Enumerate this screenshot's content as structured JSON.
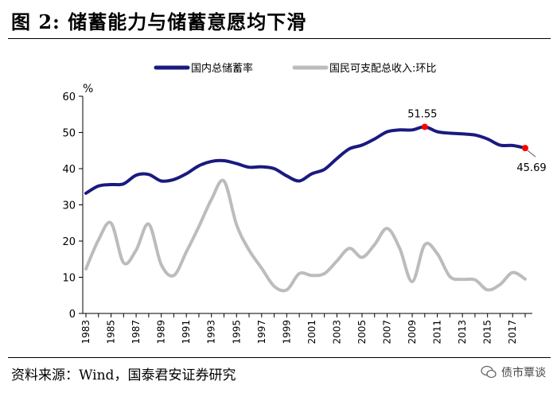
{
  "figure": {
    "label": "图 2:",
    "title": "储蓄能力与储蓄意愿均下滑",
    "source": "资料来源：Wind，国泰君安证券研究",
    "brand": "债市覃谈",
    "brand_icon": "wechat-bubble-icon"
  },
  "chart_data": {
    "type": "line",
    "ylabel": "%",
    "ylim": [
      0,
      60
    ],
    "yticks": [
      "0",
      "10",
      "20",
      "30",
      "40",
      "50",
      "60"
    ],
    "grid": false,
    "legend_position": "top",
    "x": [
      1983,
      1984,
      1985,
      1986,
      1987,
      1988,
      1989,
      1990,
      1991,
      1992,
      1993,
      1994,
      1995,
      1996,
      1997,
      1998,
      1999,
      2000,
      2001,
      2002,
      2003,
      2004,
      2005,
      2006,
      2007,
      2008,
      2009,
      2010,
      2011,
      2012,
      2013,
      2014,
      2015,
      2016,
      2017,
      2018
    ],
    "xtick_labels": [
      "1983",
      "1985",
      "1987",
      "1989",
      "1991",
      "1993",
      "1995",
      "1997",
      "1999",
      "2001",
      "2003",
      "2005",
      "2007",
      "2009",
      "2011",
      "2013",
      "2015",
      "2017"
    ],
    "series": [
      {
        "name": "国内总储蓄率",
        "color": "#1a1a80",
        "values": [
          33.2,
          35.2,
          35.6,
          35.8,
          38.2,
          38.4,
          36.6,
          37.0,
          38.6,
          40.8,
          42.0,
          42.2,
          41.4,
          40.4,
          40.5,
          40.0,
          38.0,
          36.6,
          38.6,
          39.8,
          42.8,
          45.5,
          46.5,
          48.2,
          50.2,
          50.7,
          50.7,
          51.55,
          50.2,
          49.8,
          49.6,
          49.3,
          48.2,
          46.5,
          46.4,
          45.69
        ]
      },
      {
        "name": "国民可支配总收入:环比",
        "color": "#bcbcbc",
        "values": [
          12.3,
          20.3,
          25.0,
          14.0,
          17.5,
          24.7,
          13.5,
          10.5,
          17.0,
          24.0,
          31.5,
          36.6,
          24.5,
          17.5,
          12.5,
          7.5,
          6.5,
          11.0,
          10.5,
          11.0,
          14.5,
          18.0,
          15.5,
          19.0,
          23.5,
          18.0,
          8.8,
          19.0,
          16.5,
          10.2,
          9.4,
          9.3,
          6.5,
          8.0,
          11.3,
          9.5
        ]
      }
    ],
    "annotations": [
      {
        "series": 0,
        "x": 2010,
        "value": 51.55,
        "text": "51.55",
        "marker_color": "#ff0000"
      },
      {
        "series": 0,
        "x": 2018,
        "value": 45.69,
        "text": "45.69",
        "marker_color": "#ff0000"
      }
    ]
  }
}
